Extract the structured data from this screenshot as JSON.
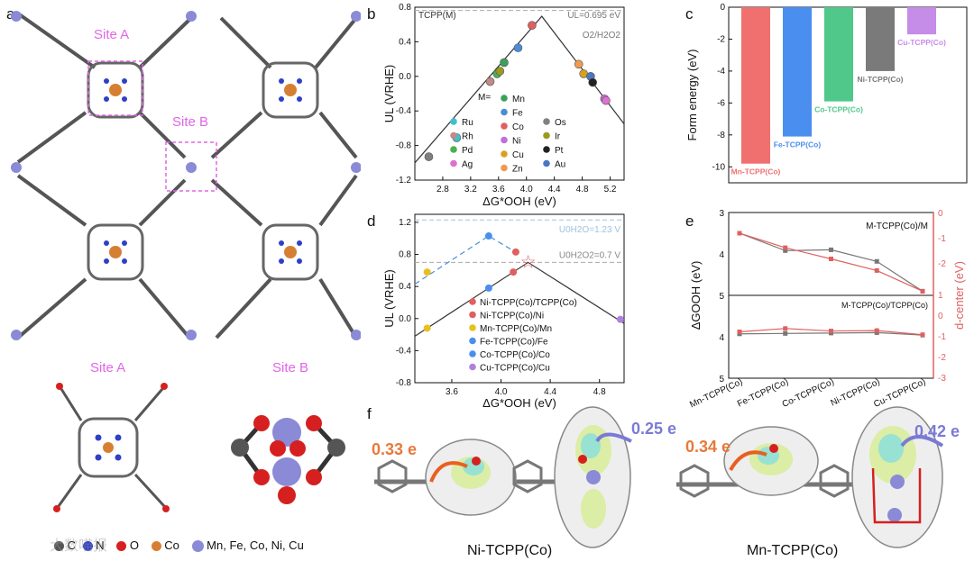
{
  "panel_labels": {
    "a": "a",
    "b": "b",
    "c": "c",
    "d": "d",
    "e": "e",
    "f": "f"
  },
  "panel_a": {
    "site_a_label": "Site A",
    "site_b_label": "Site B",
    "site_a_bottom": "Site A",
    "site_b_bottom": "Site B",
    "legend": {
      "c": "C",
      "n": "N",
      "o": "O",
      "co": "Co",
      "metals": "Mn, Fe, Co, Ni, Cu"
    },
    "watermark": "大数喵报"
  },
  "colors": {
    "metal_site": "#8a8ad6",
    "co": "#d67f33",
    "n": "#2f3fc7",
    "o": "#d62020",
    "c": "#555555",
    "h": "#e8c9c9"
  },
  "chart_data": [
    {
      "id": "b",
      "type": "scatter",
      "title": "TCPP(M)",
      "xlabel": "ΔG*OOH (eV)",
      "ylabel": "UL (VRHE)",
      "xlim": [
        2.4,
        5.4
      ],
      "ylim": [
        -1.2,
        0.8
      ],
      "xticks": [
        "2.8",
        "3.2",
        "3.6",
        "4.0",
        "4.4",
        "4.8",
        "5.2"
      ],
      "yticks": [
        "0.8",
        "0.4",
        "0.0",
        "-0.4",
        "-0.8",
        "-1.2"
      ],
      "limit_label": "UL=0.695 eV",
      "ref_label": "O2/H2O2",
      "volcano": {
        "apex": [
          4.22,
          0.695
        ],
        "left": [
          2.4,
          -1.0
        ],
        "right": [
          5.4,
          -0.55
        ]
      },
      "ref_line": 0.7,
      "series_key_label": "M=",
      "points": [
        {
          "name": "Os",
          "x": 2.6,
          "y": -0.93,
          "color": "#808080"
        },
        {
          "name": "Ru",
          "x": 3.0,
          "y": -0.71,
          "color": "#3cc1c9"
        },
        {
          "name": "Rh",
          "x": 3.48,
          "y": -0.06,
          "color": "#c08a8a"
        },
        {
          "name": "Pd",
          "x": 3.58,
          "y": 0.03,
          "color": "#4caf50"
        },
        {
          "name": "Ir",
          "x": 3.62,
          "y": 0.06,
          "color": "#9a9a20"
        },
        {
          "name": "Mn",
          "x": 3.68,
          "y": 0.16,
          "color": "#3aa05a"
        },
        {
          "name": "Fe",
          "x": 3.88,
          "y": 0.33,
          "color": "#4a8cd6"
        },
        {
          "name": "Co",
          "x": 4.08,
          "y": 0.59,
          "color": "#e06060"
        },
        {
          "name": "Zn",
          "x": 4.75,
          "y": 0.14,
          "color": "#f09a50"
        },
        {
          "name": "Cu",
          "x": 4.82,
          "y": 0.03,
          "color": "#d8a020"
        },
        {
          "name": "Au",
          "x": 4.92,
          "y": 0.0,
          "color": "#4a78c0"
        },
        {
          "name": "Pt",
          "x": 4.95,
          "y": -0.07,
          "color": "#222222"
        },
        {
          "name": "Ni",
          "x": 5.12,
          "y": -0.26,
          "color": "#c070d8"
        },
        {
          "name": "Ag",
          "x": 5.14,
          "y": -0.28,
          "color": "#e070d0"
        }
      ],
      "legend_cols": [
        [
          "Mn",
          "Fe",
          "Co",
          "Ni",
          "Cu",
          "Zn"
        ],
        [
          "Ru",
          "Rh",
          "Pd",
          "Ag"
        ],
        [
          "Os",
          "Ir",
          "Pt",
          "Au"
        ]
      ]
    },
    {
      "id": "c",
      "type": "bar",
      "ylabel": "Form energy (eV)",
      "ylim": [
        -11,
        0
      ],
      "yticks": [
        "0",
        "-2",
        "-4",
        "-6",
        "-8",
        "-10"
      ],
      "bars": [
        {
          "name": "Mn-TCPP(Co)",
          "value": -9.8,
          "color": "#f07070"
        },
        {
          "name": "Fe-TCPP(Co)",
          "value": -8.1,
          "color": "#4a8ff0"
        },
        {
          "name": "Co-TCPP(Co)",
          "value": -5.9,
          "color": "#50c88a"
        },
        {
          "name": "Ni-TCPP(Co)",
          "value": -4.0,
          "color": "#7a7a7a"
        },
        {
          "name": "Cu-TCPP(Co)",
          "value": -1.7,
          "color": "#c58ce8"
        }
      ]
    },
    {
      "id": "d",
      "type": "scatter",
      "xlabel": "ΔG*OOH (eV)",
      "ylabel": "UL (VRHE)",
      "xlim": [
        3.3,
        5.0
      ],
      "ylim": [
        -0.8,
        1.3
      ],
      "xticks": [
        "3.6",
        "4.0",
        "4.4",
        "4.8"
      ],
      "yticks": [
        "1.2",
        "0.8",
        "0.4",
        "0.0",
        "-0.4",
        "-0.8"
      ],
      "label_h2o": "U0H2O=1.23 V",
      "label_h2o2": "U0H2O2=0.7 V",
      "ref_lines": [
        1.23,
        0.7
      ],
      "black_volcano": {
        "apex": [
          4.22,
          0.7
        ],
        "left": [
          3.3,
          -0.22
        ],
        "right": [
          5.0,
          -0.06
        ]
      },
      "blue_volcano": {
        "apex": [
          3.9,
          1.03
        ],
        "left": [
          3.3,
          0.43
        ],
        "right": [
          4.15,
          0.8
        ]
      },
      "points": [
        {
          "name": "Ni-TCPP(Co)/TCPP(Co)",
          "x": 4.1,
          "y": 0.58,
          "color": "#e06060"
        },
        {
          "name": "Ni-TCPP(Co)/Ni",
          "x": 4.22,
          "y": 0.71,
          "color": "#e06060"
        },
        {
          "name": "Mn-TCPP(Co)/Mn",
          "x": 3.4,
          "y": -0.12,
          "color": "#e8c020"
        },
        {
          "name": "Fe-TCPP(Co)/Fe",
          "x": 3.9,
          "y": 0.38,
          "color": "#4a8ff0"
        },
        {
          "name": "Co-TCPP(Co)/Co",
          "x": 3.9,
          "y": 1.03,
          "color": "#4a8ff0"
        },
        {
          "name": "Cu-TCPP(Co)/Cu",
          "x": 4.97,
          "y": -0.01,
          "color": "#b080e0"
        },
        {
          "name": "Mn2",
          "x": 3.4,
          "y": 0.58,
          "color": "#e8c020"
        },
        {
          "name": "Ni2",
          "x": 4.12,
          "y": 0.83,
          "color": "#e06060"
        }
      ],
      "legend": [
        "Ni-TCPP(Co)/TCPP(Co)",
        "Ni-TCPP(Co)/Ni",
        "Mn-TCPP(Co)/Mn",
        "Fe-TCPP(Co)/Fe",
        "Co-TCPP(Co)/Co",
        "Cu-TCPP(Co)/Cu"
      ]
    },
    {
      "id": "e",
      "type": "line",
      "ylabel_left": "ΔGOOH (eV)",
      "ylabel_right": "d-center (eV)",
      "categories": [
        "Mn-TCPP(Co)",
        "Fe-TCPP(Co)",
        "Co-TCPP(Co)",
        "Ni-TCPP(Co)",
        "Cu-TCPP(Co)"
      ],
      "top_title": "M-TCPP(Co)/M",
      "bottom_title": "M-TCPP(Co)/TCPP(Co)",
      "top_left_ticks": [
        "3",
        "4",
        "5"
      ],
      "top_right_ticks": [
        "0",
        "-1",
        "-2"
      ],
      "bottom_left_ticks": [
        "4",
        "5"
      ],
      "bottom_right_ticks": [
        "1",
        "0",
        "-1",
        "-2",
        "-3"
      ],
      "top_gray": [
        3.5,
        3.92,
        3.9,
        4.18,
        4.9
      ],
      "top_red": [
        3.5,
        3.85,
        4.12,
        4.4,
        4.9
      ],
      "bottom_gray": [
        3.93,
        3.92,
        3.91,
        3.9,
        3.96
      ],
      "bottom_red": [
        3.88,
        3.8,
        3.86,
        3.85,
        3.95
      ]
    }
  ],
  "panel_f": {
    "left_caption": "Ni-TCPP(Co)",
    "right_caption": "Mn-TCPP(Co)",
    "left_charge_1": "0.33 e",
    "left_charge_2": "0.25 e",
    "right_charge_1": "0.34 e",
    "right_charge_2": "0.42 e"
  }
}
